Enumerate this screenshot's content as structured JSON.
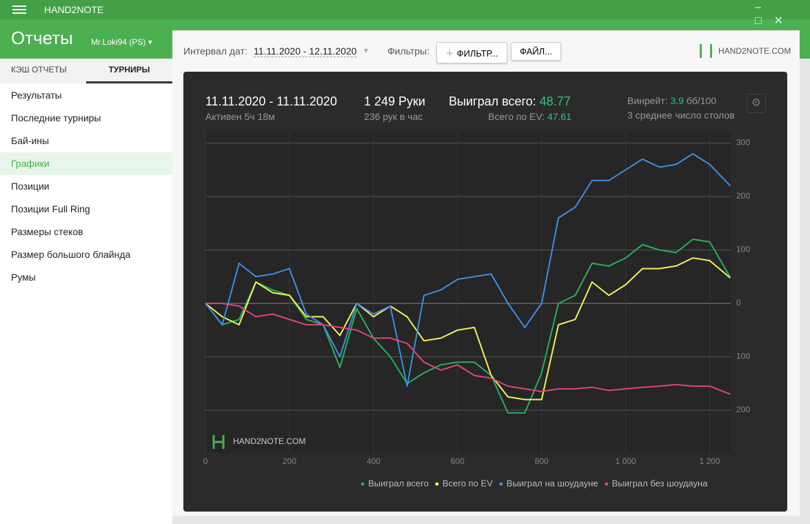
{
  "app": {
    "name": "HAND2NOTE",
    "section": "Отчеты",
    "account": "Mr.Loki94 (PS)"
  },
  "tabs": [
    "КЭШ ОТЧЕТЫ",
    "ТУРНИРЫ"
  ],
  "menu": [
    "Результаты",
    "Последние турниры",
    "Бай-ины",
    "Графики",
    "Позиции",
    "Позиции Full Ring",
    "Размеры стеков",
    "Размер большого блайнда",
    "Румы"
  ],
  "toolbar": {
    "interval_label": "Интервал дат:",
    "interval": "11.11.2020 - 12.11.2020",
    "filters_label": "Фильтры:",
    "filter_button": "ФИЛЬТР...",
    "file_button": "ФАЙЛ...",
    "logo": "HAND2NOTE.COM"
  },
  "stats": {
    "dates": "11.11.2020 - 11.11.2020",
    "active": "Активен 5ч 18м",
    "hands": "1 249 Руки",
    "hands_per_hour": "236 рук в час",
    "won_label": "Выиграл всего:",
    "won": "48.77",
    "ev_label": "Всего по EV:",
    "ev": "47.61",
    "winrate_label": "Винрейт:",
    "winrate": "3.9",
    "winrate_unit": "бб/100",
    "tables": "3 среднее число столов"
  },
  "chart_data": {
    "type": "line",
    "watermark": "HAND2NOTE.COM",
    "x": [
      0,
      40,
      80,
      120,
      160,
      200,
      240,
      280,
      320,
      360,
      400,
      440,
      480,
      520,
      560,
      600,
      640,
      680,
      720,
      760,
      800,
      840,
      880,
      920,
      960,
      1000,
      1040,
      1080,
      1120,
      1160,
      1200,
      1249
    ],
    "series": [
      {
        "name": "Выиграл всего",
        "color": "#27b060",
        "values": [
          0,
          -40,
          -30,
          40,
          25,
          15,
          -30,
          -40,
          -120,
          -10,
          -65,
          -100,
          -150,
          -130,
          -115,
          -110,
          -110,
          -135,
          -205,
          -205,
          -130,
          0,
          15,
          75,
          70,
          85,
          110,
          100,
          95,
          120,
          115,
          48.77
        ]
      },
      {
        "name": "Всего по EV",
        "color": "#f2f25c",
        "values": [
          0,
          -25,
          -40,
          40,
          20,
          15,
          -25,
          -25,
          -60,
          0,
          -25,
          -5,
          -25,
          -70,
          -65,
          -50,
          -45,
          -135,
          -175,
          -180,
          -180,
          -40,
          -30,
          40,
          15,
          35,
          65,
          65,
          70,
          85,
          80,
          47.61
        ]
      },
      {
        "name": "Выиграл на шоудауне",
        "color": "#3d8fe0",
        "values": [
          0,
          -40,
          75,
          50,
          55,
          65,
          -20,
          -40,
          -100,
          0,
          -20,
          -5,
          -155,
          15,
          25,
          45,
          50,
          55,
          0,
          -45,
          0,
          160,
          180,
          230,
          230,
          250,
          270,
          255,
          260,
          280,
          260,
          220
        ]
      },
      {
        "name": "Выиграл без шоудауна",
        "color": "#e0457a",
        "values": [
          0,
          0,
          -5,
          -25,
          -20,
          -30,
          -40,
          -40,
          -45,
          -50,
          -65,
          -65,
          -75,
          -110,
          -125,
          -115,
          -135,
          -140,
          -155,
          -160,
          -165,
          -160,
          -160,
          -157,
          -163,
          -160,
          -157,
          -155,
          -152,
          -155,
          -155,
          -170
        ]
      }
    ],
    "xlim": [
      0,
      1250
    ],
    "xticks": [
      0,
      200,
      400,
      600,
      800,
      {
        "value": 1000,
        "label": "1 000"
      },
      {
        "value": 1200,
        "label": "1 200"
      }
    ],
    "ylim": [
      -280,
      320
    ],
    "yticks": [
      {
        "value": -200,
        "label": "200"
      },
      {
        "value": -100,
        "label": "100"
      },
      0,
      100,
      200,
      300
    ],
    "grid": true,
    "legend": "bottom"
  }
}
